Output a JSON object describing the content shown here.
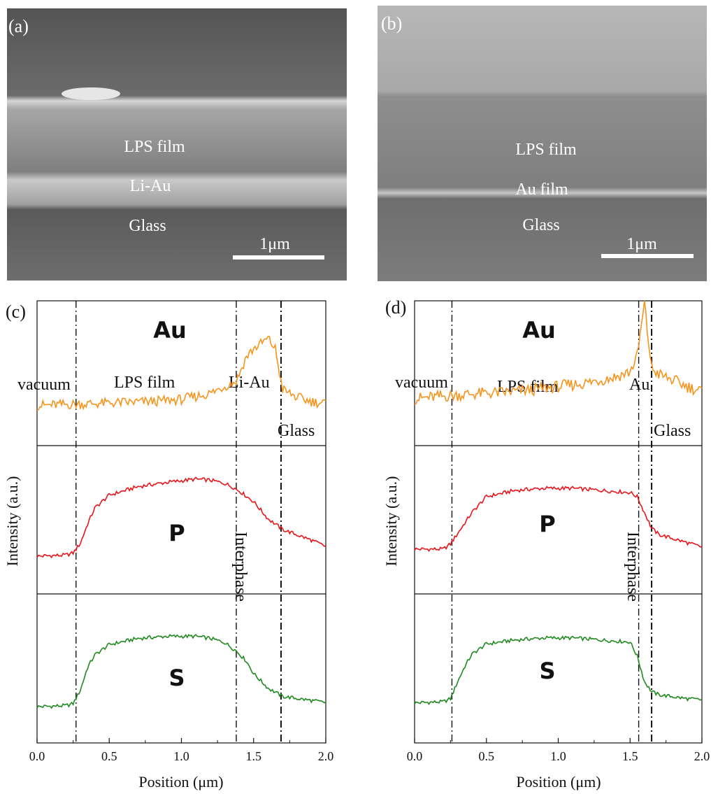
{
  "sem": [
    {
      "letter": "(a)",
      "labels": {
        "film": "LPS film",
        "interlayer": "Li-Au",
        "substrate": "Glass"
      },
      "scalebar": "1μm"
    },
    {
      "letter": "(b)",
      "labels": {
        "film": "LPS film",
        "interlayer": "Au film",
        "substrate": "Glass"
      },
      "scalebar": "1μm"
    }
  ],
  "colors": {
    "Au": "#f7941d",
    "P": "#e8151b",
    "S": "#1f8a1f"
  },
  "chart_data": [
    {
      "type": "line",
      "panel": "(c)",
      "xlabel": "Position (μm)",
      "ylabel": "Intensity (a.u.)",
      "xlim": [
        0.0,
        2.0
      ],
      "xticks": [
        "0.0",
        "0.5",
        "1.0",
        "1.5",
        "2.0"
      ],
      "stacked_panels": [
        "Au",
        "P",
        "S"
      ],
      "boundaries": [
        0.27,
        1.38,
        1.69
      ],
      "region_labels": {
        "vacuum": "vacuum",
        "film": "LPS film",
        "interlayer": "Li-Au",
        "substrate": "Glass",
        "interphase": "Interphase"
      },
      "series": [
        {
          "name": "Au",
          "x": [
            0.0,
            0.2,
            0.4,
            0.6,
            0.8,
            1.0,
            1.2,
            1.3,
            1.38,
            1.45,
            1.5,
            1.55,
            1.6,
            1.65,
            1.7,
            1.8,
            1.9,
            2.0
          ],
          "values": [
            0.14,
            0.15,
            0.16,
            0.17,
            0.18,
            0.2,
            0.26,
            0.33,
            0.38,
            0.62,
            0.7,
            0.75,
            0.8,
            0.7,
            0.3,
            0.22,
            0.18,
            0.16
          ]
        },
        {
          "name": "P",
          "x": [
            0.0,
            0.2,
            0.25,
            0.3,
            0.35,
            0.4,
            0.5,
            0.7,
            0.9,
            1.1,
            1.2,
            1.3,
            1.35,
            1.4,
            1.5,
            1.6,
            1.7,
            1.8,
            1.9,
            2.0
          ],
          "values": [
            0.15,
            0.16,
            0.18,
            0.27,
            0.45,
            0.6,
            0.72,
            0.8,
            0.84,
            0.87,
            0.86,
            0.83,
            0.8,
            0.76,
            0.66,
            0.5,
            0.4,
            0.35,
            0.3,
            0.24
          ]
        },
        {
          "name": "S",
          "x": [
            0.0,
            0.2,
            0.25,
            0.3,
            0.35,
            0.4,
            0.5,
            0.7,
            0.9,
            1.1,
            1.2,
            1.3,
            1.38,
            1.45,
            1.5,
            1.6,
            1.7,
            1.8,
            1.9,
            2.0
          ],
          "values": [
            0.12,
            0.13,
            0.15,
            0.28,
            0.5,
            0.62,
            0.72,
            0.78,
            0.8,
            0.8,
            0.78,
            0.74,
            0.66,
            0.56,
            0.44,
            0.3,
            0.22,
            0.2,
            0.18,
            0.16
          ]
        }
      ]
    },
    {
      "type": "line",
      "panel": "(d)",
      "xlabel": "Position (μm)",
      "ylabel": "Intensity (a.u.)",
      "xlim": [
        0.0,
        2.0
      ],
      "xticks": [
        "0.0",
        "0.5",
        "1.0",
        "1.5",
        "2.0"
      ],
      "stacked_panels": [
        "Au",
        "P",
        "S"
      ],
      "boundaries": [
        0.26,
        1.56,
        1.65
      ],
      "region_labels": {
        "vacuum": "vacuum",
        "film": "LPS film",
        "interlayer": "Au",
        "substrate": "Glass",
        "interphase": "Interphase"
      },
      "series": [
        {
          "name": "Au",
          "x": [
            0.0,
            0.2,
            0.4,
            0.6,
            0.8,
            1.0,
            1.2,
            1.4,
            1.5,
            1.55,
            1.58,
            1.6,
            1.62,
            1.65,
            1.7,
            1.8,
            1.9,
            2.0
          ],
          "values": [
            0.2,
            0.22,
            0.24,
            0.25,
            0.27,
            0.3,
            0.33,
            0.38,
            0.42,
            0.55,
            0.8,
            0.98,
            0.75,
            0.45,
            0.4,
            0.35,
            0.3,
            0.26
          ]
        },
        {
          "name": "P",
          "x": [
            0.0,
            0.2,
            0.25,
            0.3,
            0.35,
            0.4,
            0.5,
            0.7,
            0.9,
            1.1,
            1.3,
            1.5,
            1.55,
            1.6,
            1.65,
            1.7,
            1.8,
            1.9,
            2.0
          ],
          "values": [
            0.2,
            0.2,
            0.25,
            0.35,
            0.45,
            0.55,
            0.7,
            0.76,
            0.78,
            0.78,
            0.76,
            0.74,
            0.7,
            0.55,
            0.4,
            0.34,
            0.3,
            0.26,
            0.22
          ]
        },
        {
          "name": "S",
          "x": [
            0.0,
            0.2,
            0.25,
            0.3,
            0.35,
            0.4,
            0.5,
            0.7,
            0.9,
            1.1,
            1.3,
            1.5,
            1.55,
            1.6,
            1.65,
            1.7,
            1.8,
            1.9,
            2.0
          ],
          "values": [
            0.14,
            0.15,
            0.18,
            0.35,
            0.5,
            0.62,
            0.72,
            0.76,
            0.78,
            0.78,
            0.76,
            0.74,
            0.6,
            0.35,
            0.25,
            0.22,
            0.2,
            0.18,
            0.17
          ]
        }
      ]
    }
  ]
}
